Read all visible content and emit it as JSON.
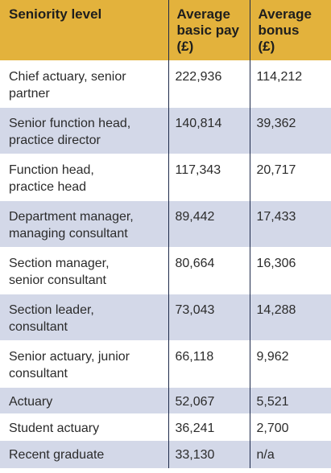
{
  "table": {
    "headers": [
      "Seniority level",
      "Average basic pay (£)",
      "Average bonus (£)"
    ],
    "header_lines": [
      [
        "Seniority level"
      ],
      [
        "Average",
        "basic pay",
        "(£)"
      ],
      [
        "Average",
        "bonus",
        "(£)"
      ]
    ],
    "rows": [
      {
        "level": "Chief actuary, senior partner",
        "level_lines": [
          "Chief actuary, senior",
          "partner"
        ],
        "pay": "222,936",
        "bonus": "114,212"
      },
      {
        "level": "Senior function head, practice director",
        "level_lines": [
          "Senior function head,",
          "practice director"
        ],
        "pay": "140,814",
        "bonus": "39,362"
      },
      {
        "level": "Function head, practice head",
        "level_lines": [
          "Function head,",
          "practice head"
        ],
        "pay": "117,343",
        "bonus": "20,717"
      },
      {
        "level": "Department manager, managing consultant",
        "level_lines": [
          "Department manager,",
          "managing consultant"
        ],
        "pay": "89,442",
        "bonus": "17,433"
      },
      {
        "level": "Section manager, senior consultant",
        "level_lines": [
          "Section manager,",
          "senior consultant"
        ],
        "pay": "80,664",
        "bonus": "16,306"
      },
      {
        "level": "Section leader, consultant",
        "level_lines": [
          "Section leader,",
          "consultant"
        ],
        "pay": "73,043",
        "bonus": "14,288"
      },
      {
        "level": "Senior actuary, junior consultant",
        "level_lines": [
          "Senior actuary, junior",
          "consultant"
        ],
        "pay": "66,118",
        "bonus": "9,962"
      },
      {
        "level": "Actuary",
        "level_lines": [
          "Actuary"
        ],
        "pay": "52,067",
        "bonus": "5,521"
      },
      {
        "level": "Student actuary",
        "level_lines": [
          "Student actuary"
        ],
        "pay": "36,241",
        "bonus": "2,700"
      },
      {
        "level": "Recent graduate",
        "level_lines": [
          "Recent graduate"
        ],
        "pay": "33,130",
        "bonus": "n/a"
      }
    ]
  },
  "colors": {
    "header_bg": "#e3b23c",
    "alt_row_bg": "#d3d8e8",
    "divider": "#1d2a4a"
  }
}
